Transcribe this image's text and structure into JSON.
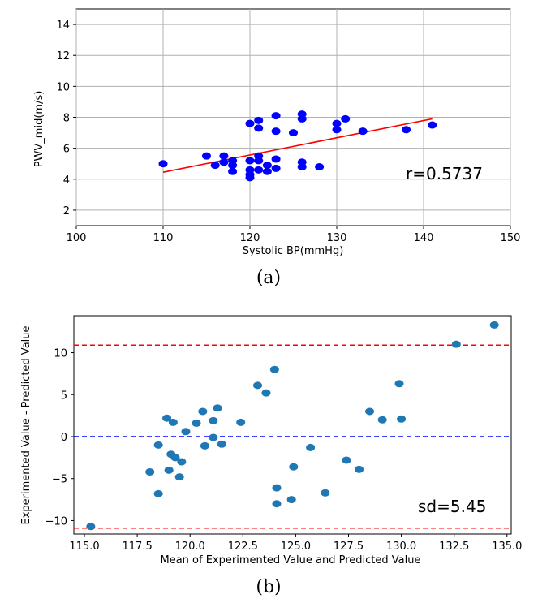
{
  "chart_data": [
    {
      "type": "scatter",
      "caption": "(a)",
      "xlabel": "Systolic BP(mmHg)",
      "ylabel": "PWV_mid(m/s)",
      "xlim": [
        100,
        150
      ],
      "ylim": [
        1,
        15
      ],
      "xticks": [
        "100",
        "110",
        "120",
        "130",
        "140",
        "150"
      ],
      "yticks": [
        "2",
        "4",
        "6",
        "8",
        "10",
        "12",
        "14"
      ],
      "grid": true,
      "point_color": "#0000ff",
      "line_color": "#ff0000",
      "annotation": "r=0.5737",
      "points": [
        [
          110,
          5.0
        ],
        [
          115,
          5.5
        ],
        [
          116,
          4.9
        ],
        [
          117,
          5.5
        ],
        [
          117,
          5.1
        ],
        [
          118,
          5.2
        ],
        [
          118,
          4.9
        ],
        [
          118,
          4.5
        ],
        [
          120,
          7.6
        ],
        [
          120,
          5.2
        ],
        [
          120,
          4.6
        ],
        [
          120,
          4.3
        ],
        [
          120,
          4.1
        ],
        [
          121,
          7.8
        ],
        [
          121,
          7.3
        ],
        [
          121,
          5.5
        ],
        [
          121,
          5.2
        ],
        [
          121,
          4.6
        ],
        [
          122,
          4.9
        ],
        [
          122,
          4.5
        ],
        [
          123,
          8.1
        ],
        [
          123,
          7.1
        ],
        [
          123,
          5.3
        ],
        [
          123,
          4.7
        ],
        [
          125,
          7.0
        ],
        [
          126,
          8.2
        ],
        [
          126,
          7.9
        ],
        [
          126,
          5.1
        ],
        [
          126,
          4.8
        ],
        [
          128,
          4.8
        ],
        [
          130,
          7.6
        ],
        [
          130,
          7.2
        ],
        [
          131,
          7.9
        ],
        [
          133,
          7.1
        ],
        [
          138,
          7.2
        ],
        [
          141,
          7.5
        ]
      ],
      "fit_line": [
        [
          110,
          4.45
        ],
        [
          141,
          7.9
        ]
      ]
    },
    {
      "type": "scatter",
      "caption": "(b)",
      "xlabel": "Mean of Experimented Value and Predicted Value",
      "ylabel": "Experimented Value - Predicted Value",
      "xlim": [
        114.5,
        135.2
      ],
      "ylim": [
        -11.6,
        14.4
      ],
      "xticks": [
        "115.0",
        "117.5",
        "120.0",
        "122.5",
        "125.0",
        "127.5",
        "130.0",
        "132.5",
        "135.0"
      ],
      "yticks": [
        "10",
        "5",
        "0",
        "−5",
        "−10"
      ],
      "grid": false,
      "point_color": "#1f77b4",
      "annotation": "sd=5.45",
      "hlines": [
        {
          "y": 10.9,
          "color": "#ff0000"
        },
        {
          "y": 0,
          "color": "#0000ff"
        },
        {
          "y": -10.9,
          "color": "#ff0000"
        }
      ],
      "points": [
        [
          115.3,
          -10.7
        ],
        [
          118.1,
          -4.2
        ],
        [
          118.5,
          -6.8
        ],
        [
          118.5,
          -1.0
        ],
        [
          118.9,
          2.2
        ],
        [
          119.0,
          -4.0
        ],
        [
          119.1,
          -2.1
        ],
        [
          119.2,
          1.7
        ],
        [
          119.3,
          -2.5
        ],
        [
          119.5,
          -4.8
        ],
        [
          119.6,
          -3.0
        ],
        [
          119.8,
          0.6
        ],
        [
          120.3,
          1.6
        ],
        [
          120.6,
          3.0
        ],
        [
          120.7,
          -1.1
        ],
        [
          121.1,
          1.9
        ],
        [
          121.1,
          -0.1
        ],
        [
          121.3,
          3.4
        ],
        [
          121.5,
          -0.9
        ],
        [
          122.4,
          1.7
        ],
        [
          123.2,
          6.1
        ],
        [
          123.6,
          5.2
        ],
        [
          124.0,
          8.0
        ],
        [
          124.1,
          -8.0
        ],
        [
          124.1,
          -6.1
        ],
        [
          124.8,
          -7.5
        ],
        [
          124.9,
          -3.6
        ],
        [
          125.7,
          -1.3
        ],
        [
          126.4,
          -6.7
        ],
        [
          127.4,
          -2.8
        ],
        [
          128.0,
          -3.9
        ],
        [
          128.5,
          3.0
        ],
        [
          129.1,
          2.0
        ],
        [
          129.9,
          6.3
        ],
        [
          130.0,
          2.1
        ],
        [
          132.6,
          11.0
        ],
        [
          134.4,
          13.3
        ]
      ]
    }
  ]
}
